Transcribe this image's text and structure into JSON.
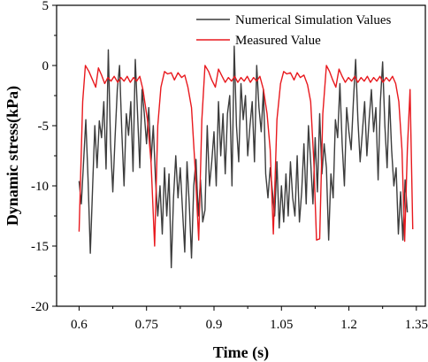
{
  "chart_data": {
    "type": "line",
    "title": "",
    "xlabel": "Time (s)",
    "ylabel": "Dynamic stress(kPa)",
    "xlim": [
      0.55,
      1.37
    ],
    "ylim": [
      -20,
      5
    ],
    "x_ticks": [
      0.6,
      0.75,
      0.9,
      1.05,
      1.2,
      1.35
    ],
    "x_tick_labels": [
      "0.6",
      "0.75",
      "0.9",
      "1.05",
      "1.2",
      "1.35"
    ],
    "y_ticks": [
      5,
      0,
      -5,
      -10,
      -15,
      -20
    ],
    "y_tick_labels": [
      "5",
      "0",
      "-5",
      "-10",
      "-15",
      "-20"
    ],
    "grid": false,
    "legend_position": "top-right",
    "series": [
      {
        "name": "Numerical Simulation Values",
        "color": "#3c3c3c",
        "points": [
          [
            0.6,
            -9.6
          ],
          [
            0.605,
            -11.5
          ],
          [
            0.61,
            -8.0
          ],
          [
            0.615,
            -4.5
          ],
          [
            0.62,
            -9.5
          ],
          [
            0.625,
            -15.6
          ],
          [
            0.63,
            -10.2
          ],
          [
            0.635,
            -5.0
          ],
          [
            0.64,
            -8.5
          ],
          [
            0.645,
            -4.6
          ],
          [
            0.65,
            -6.0
          ],
          [
            0.655,
            -3.0
          ],
          [
            0.66,
            -8.6
          ],
          [
            0.665,
            1.3
          ],
          [
            0.67,
            -6.5
          ],
          [
            0.675,
            -10.5
          ],
          [
            0.68,
            -6.0
          ],
          [
            0.685,
            -2.0
          ],
          [
            0.69,
            0.0
          ],
          [
            0.695,
            -5.5
          ],
          [
            0.7,
            -10.0
          ],
          [
            0.705,
            -4.0
          ],
          [
            0.71,
            -5.8
          ],
          [
            0.715,
            -3.0
          ],
          [
            0.72,
            -8.8
          ],
          [
            0.725,
            0.5
          ],
          [
            0.73,
            -4.0
          ],
          [
            0.735,
            -8.5
          ],
          [
            0.74,
            -2.0
          ],
          [
            0.745,
            -4.0
          ],
          [
            0.75,
            -6.5
          ],
          [
            0.755,
            -3.5
          ],
          [
            0.76,
            -8.0
          ],
          [
            0.765,
            -5.0
          ],
          [
            0.77,
            -9.5
          ],
          [
            0.775,
            -12.5
          ],
          [
            0.78,
            -10.0
          ],
          [
            0.785,
            -14.0
          ],
          [
            0.79,
            -8.5
          ],
          [
            0.795,
            -12.5
          ],
          [
            0.8,
            -9.0
          ],
          [
            0.805,
            -16.8
          ],
          [
            0.81,
            -11.0
          ],
          [
            0.815,
            -7.5
          ],
          [
            0.82,
            -11.0
          ],
          [
            0.825,
            -8.5
          ],
          [
            0.83,
            -12.0
          ],
          [
            0.835,
            -15.5
          ],
          [
            0.84,
            -8.0
          ],
          [
            0.845,
            -11.5
          ],
          [
            0.85,
            -16.0
          ],
          [
            0.855,
            -10.0
          ],
          [
            0.86,
            -7.8
          ],
          [
            0.865,
            -12.5
          ],
          [
            0.87,
            -9.5
          ],
          [
            0.875,
            -13.0
          ],
          [
            0.88,
            -12.0
          ],
          [
            0.885,
            -5.0
          ],
          [
            0.89,
            -10.0
          ],
          [
            0.895,
            -8.0
          ],
          [
            0.9,
            -5.5
          ],
          [
            0.905,
            -10.0
          ],
          [
            0.91,
            -3.0
          ],
          [
            0.915,
            -7.5
          ],
          [
            0.92,
            -4.0
          ],
          [
            0.925,
            -9.0
          ],
          [
            0.93,
            -4.0
          ],
          [
            0.935,
            -2.5
          ],
          [
            0.94,
            -10.0
          ],
          [
            0.945,
            1.6
          ],
          [
            0.95,
            -5.0
          ],
          [
            0.955,
            -8.0
          ],
          [
            0.96,
            -1.5
          ],
          [
            0.965,
            -4.5
          ],
          [
            0.97,
            -2.5
          ],
          [
            0.975,
            -7.5
          ],
          [
            0.98,
            -5.0
          ],
          [
            0.985,
            -3.0
          ],
          [
            0.99,
            -8.0
          ],
          [
            0.995,
            0.0
          ],
          [
            1.0,
            -3.5
          ],
          [
            1.005,
            -5.5
          ],
          [
            1.01,
            -2.0
          ],
          [
            1.015,
            -9.0
          ],
          [
            1.02,
            -11.0
          ],
          [
            1.025,
            -8.5
          ],
          [
            1.03,
            -10.5
          ],
          [
            1.035,
            -12.5
          ],
          [
            1.04,
            -8.0
          ],
          [
            1.045,
            -13.5
          ],
          [
            1.05,
            -10.0
          ],
          [
            1.055,
            -13.0
          ],
          [
            1.06,
            -9.0
          ],
          [
            1.065,
            -12.5
          ],
          [
            1.07,
            -8.0
          ],
          [
            1.075,
            -11.0
          ],
          [
            1.08,
            -12.5
          ],
          [
            1.085,
            -7.5
          ],
          [
            1.09,
            -13.0
          ],
          [
            1.095,
            -10.5
          ],
          [
            1.1,
            -6.5
          ],
          [
            1.105,
            -11.5
          ],
          [
            1.11,
            -5.0
          ],
          [
            1.115,
            -8.0
          ],
          [
            1.12,
            -11.5
          ],
          [
            1.125,
            -6.0
          ],
          [
            1.13,
            -10.5
          ],
          [
            1.135,
            -4.0
          ],
          [
            1.14,
            -9.0
          ],
          [
            1.145,
            -6.5
          ],
          [
            1.15,
            -8.5
          ],
          [
            1.155,
            -14.5
          ],
          [
            1.16,
            -9.0
          ],
          [
            1.165,
            -11.0
          ],
          [
            1.17,
            -4.5
          ],
          [
            1.175,
            -6.0
          ],
          [
            1.18,
            -1.5
          ],
          [
            1.185,
            -6.5
          ],
          [
            1.19,
            -10.0
          ],
          [
            1.195,
            -3.5
          ],
          [
            1.2,
            -5.5
          ],
          [
            1.205,
            -7.0
          ],
          [
            1.21,
            -3.0
          ],
          [
            1.215,
            0.5
          ],
          [
            1.22,
            -4.5
          ],
          [
            1.225,
            -8.0
          ],
          [
            1.23,
            -5.5
          ],
          [
            1.235,
            -3.0
          ],
          [
            1.24,
            -7.5
          ],
          [
            1.245,
            -4.5
          ],
          [
            1.25,
            -2.0
          ],
          [
            1.255,
            -5.5
          ],
          [
            1.26,
            -3.5
          ],
          [
            1.265,
            -9.5
          ],
          [
            1.27,
            -3.0
          ],
          [
            1.275,
            0.3
          ],
          [
            1.28,
            -5.0
          ],
          [
            1.285,
            -8.5
          ],
          [
            1.29,
            -2.5
          ],
          [
            1.295,
            -7.0
          ],
          [
            1.3,
            -10.0
          ],
          [
            1.305,
            -8.5
          ],
          [
            1.31,
            -14.0
          ],
          [
            1.315,
            -10.5
          ],
          [
            1.32,
            -14.5
          ],
          [
            1.325,
            -9.5
          ],
          [
            1.33,
            -12.2
          ]
        ]
      },
      {
        "name": "Measured Value",
        "color": "#e8191e",
        "points": [
          [
            0.6,
            -13.8
          ],
          [
            0.608,
            -3.0
          ],
          [
            0.614,
            0.0
          ],
          [
            0.622,
            -0.5
          ],
          [
            0.63,
            -1.2
          ],
          [
            0.637,
            -1.8
          ],
          [
            0.643,
            -0.2
          ],
          [
            0.65,
            -0.8
          ],
          [
            0.657,
            -1.5
          ],
          [
            0.664,
            -1.0
          ],
          [
            0.671,
            -1.3
          ],
          [
            0.678,
            -0.9
          ],
          [
            0.686,
            -1.4
          ],
          [
            0.693,
            -1.0
          ],
          [
            0.7,
            -1.3
          ],
          [
            0.707,
            -0.9
          ],
          [
            0.714,
            -1.4
          ],
          [
            0.721,
            -1.0
          ],
          [
            0.728,
            -1.3
          ],
          [
            0.735,
            -0.9
          ],
          [
            0.742,
            -2.0
          ],
          [
            0.752,
            -4.5
          ],
          [
            0.76,
            -8.0
          ],
          [
            0.768,
            -15.0
          ],
          [
            0.775,
            -5.0
          ],
          [
            0.782,
            -1.8
          ],
          [
            0.79,
            -0.5
          ],
          [
            0.797,
            -0.7
          ],
          [
            0.805,
            -0.6
          ],
          [
            0.812,
            -1.2
          ],
          [
            0.82,
            -0.6
          ],
          [
            0.828,
            -1.0
          ],
          [
            0.835,
            -0.8
          ],
          [
            0.842,
            -1.8
          ],
          [
            0.85,
            -3.5
          ],
          [
            0.858,
            -8.5
          ],
          [
            0.866,
            -14.5
          ],
          [
            0.873,
            -4.5
          ],
          [
            0.88,
            0.0
          ],
          [
            0.888,
            -0.5
          ],
          [
            0.895,
            -1.2
          ],
          [
            0.903,
            -1.8
          ],
          [
            0.91,
            -0.3
          ],
          [
            0.918,
            -0.9
          ],
          [
            0.925,
            -1.4
          ],
          [
            0.932,
            -1.0
          ],
          [
            0.939,
            -1.3
          ],
          [
            0.946,
            -0.9
          ],
          [
            0.953,
            -1.4
          ],
          [
            0.96,
            -1.0
          ],
          [
            0.967,
            -1.3
          ],
          [
            0.974,
            -0.9
          ],
          [
            0.981,
            -1.4
          ],
          [
            0.988,
            -1.0
          ],
          [
            0.995,
            -1.3
          ],
          [
            1.002,
            -0.9
          ],
          [
            1.01,
            -2.0
          ],
          [
            1.018,
            -4.0
          ],
          [
            1.025,
            -7.0
          ],
          [
            1.032,
            -14.0
          ],
          [
            1.04,
            -4.5
          ],
          [
            1.048,
            -1.5
          ],
          [
            1.055,
            -0.5
          ],
          [
            1.062,
            -0.7
          ],
          [
            1.07,
            -0.6
          ],
          [
            1.078,
            -1.2
          ],
          [
            1.085,
            -0.6
          ],
          [
            1.092,
            -1.0
          ],
          [
            1.1,
            -0.8
          ],
          [
            1.108,
            -1.6
          ],
          [
            1.115,
            -3.0
          ],
          [
            1.122,
            -8.0
          ],
          [
            1.128,
            -14.5
          ],
          [
            1.135,
            -14.4
          ],
          [
            1.142,
            -4.0
          ],
          [
            1.15,
            0.0
          ],
          [
            1.157,
            -0.5
          ],
          [
            1.164,
            -1.2
          ],
          [
            1.171,
            -1.8
          ],
          [
            1.178,
            -0.3
          ],
          [
            1.185,
            -0.9
          ],
          [
            1.192,
            -1.4
          ],
          [
            1.199,
            -1.0
          ],
          [
            1.206,
            -1.3
          ],
          [
            1.213,
            -0.9
          ],
          [
            1.22,
            -1.4
          ],
          [
            1.227,
            -1.0
          ],
          [
            1.234,
            -1.3
          ],
          [
            1.241,
            -0.9
          ],
          [
            1.248,
            -1.4
          ],
          [
            1.255,
            -1.0
          ],
          [
            1.262,
            -1.3
          ],
          [
            1.269,
            -0.9
          ],
          [
            1.276,
            -1.4
          ],
          [
            1.283,
            -1.0
          ],
          [
            1.29,
            -1.3
          ],
          [
            1.297,
            -0.9
          ],
          [
            1.304,
            -1.5
          ],
          [
            1.311,
            -3.0
          ],
          [
            1.318,
            -7.0
          ],
          [
            1.324,
            -14.6
          ],
          [
            1.33,
            -7.0
          ],
          [
            1.336,
            -2.0
          ],
          [
            1.342,
            -13.6
          ]
        ]
      }
    ]
  }
}
